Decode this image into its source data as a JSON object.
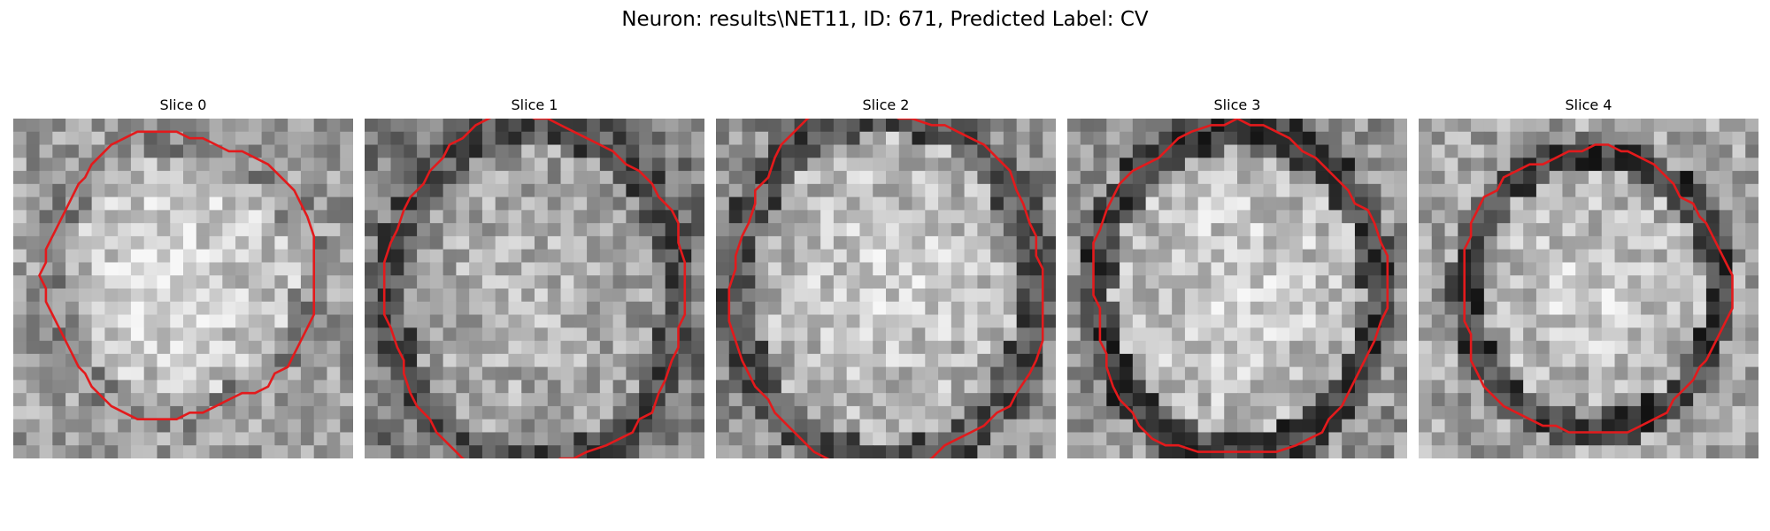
{
  "figure": {
    "title": "Neuron: results\\NET11, ID: 671, Predicted Label: CV",
    "contour_color": "#e31a1c",
    "colormap": "gray"
  },
  "panels": [
    {
      "title": "Slice 0"
    },
    {
      "title": "Slice 1"
    },
    {
      "title": "Slice 2"
    },
    {
      "title": "Slice 3"
    },
    {
      "title": "Slice 4"
    }
  ]
}
